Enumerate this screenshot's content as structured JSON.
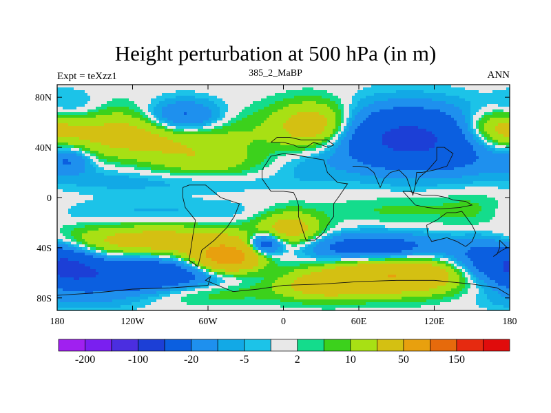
{
  "chart_data": {
    "type": "heatmap",
    "title": "Height perturbation at 500 hPa (in m)",
    "left_label": "Expt = teXzz1",
    "center_label": "385_2_MaBP",
    "right_label": "ANN",
    "x_ticks": [
      "180",
      "120W",
      "60W",
      "0",
      "60E",
      "120E",
      "180"
    ],
    "x_tick_values": [
      -180,
      -120,
      -60,
      0,
      60,
      120,
      180
    ],
    "y_ticks": [
      "80N",
      "40N",
      "0",
      "40S",
      "80S"
    ],
    "y_tick_values": [
      80,
      40,
      0,
      -40,
      -80
    ],
    "xlim": [
      -180,
      180
    ],
    "ylim": [
      -90,
      90
    ],
    "colorbar": {
      "boundaries": [
        -200,
        -150,
        -100,
        -50,
        -20,
        -10,
        -5,
        -2,
        2,
        5,
        10,
        20,
        50,
        100,
        150,
        200
      ],
      "labels": [
        "-200",
        "-100",
        "-20",
        "-5",
        "2",
        "10",
        "50",
        "150"
      ],
      "label_values": [
        -200,
        -100,
        -20,
        -5,
        2,
        10,
        50,
        150
      ],
      "colors": [
        "#a020f0",
        "#7a1ff0",
        "#4b2ee0",
        "#1c3fd6",
        "#0b5fe0",
        "#1e90ee",
        "#12a9e6",
        "#1cc3e8",
        "#e8e8e8",
        "#14dc8c",
        "#3cd11c",
        "#a8e014",
        "#d4c012",
        "#e8a00e",
        "#e66a0c",
        "#e62a10",
        "#e00c0c"
      ]
    },
    "anomaly_centers": [
      {
        "lon": -170,
        "lat": 70,
        "value": -10,
        "sx": 18,
        "sy": 10
      },
      {
        "lon": -110,
        "lat": 50,
        "value": 30,
        "sx": 55,
        "sy": 14
      },
      {
        "lon": -60,
        "lat": 28,
        "value": 12,
        "sx": 28,
        "sy": 8
      },
      {
        "lon": -140,
        "lat": 20,
        "value": -4,
        "sx": 25,
        "sy": 10
      },
      {
        "lon": -80,
        "lat": 63,
        "value": -35,
        "sx": 22,
        "sy": 10
      },
      {
        "lon": -90,
        "lat": 12,
        "value": -6,
        "sx": 60,
        "sy": 6
      },
      {
        "lon": 25,
        "lat": 57,
        "value": 35,
        "sx": 22,
        "sy": 13
      },
      {
        "lon": 100,
        "lat": 47,
        "value": -60,
        "sx": 40,
        "sy": 17
      },
      {
        "lon": 170,
        "lat": 55,
        "value": 25,
        "sx": 20,
        "sy": 10
      },
      {
        "lon": 150,
        "lat": 30,
        "value": -8,
        "sx": 25,
        "sy": 10
      },
      {
        "lon": 20,
        "lat": 25,
        "value": -6,
        "sx": 20,
        "sy": 10
      },
      {
        "lon": -170,
        "lat": 30,
        "value": -20,
        "sx": 12,
        "sy": 8
      },
      {
        "lon": 90,
        "lat": -10,
        "value": 6,
        "sx": 40,
        "sy": 8
      },
      {
        "lon": 150,
        "lat": -10,
        "value": 6,
        "sx": 20,
        "sy": 10
      },
      {
        "lon": 5,
        "lat": -25,
        "value": 28,
        "sx": 18,
        "sy": 10
      },
      {
        "lon": -100,
        "lat": -35,
        "value": 30,
        "sx": 55,
        "sy": 9
      },
      {
        "lon": -45,
        "lat": -48,
        "value": 70,
        "sx": 18,
        "sy": 8
      },
      {
        "lon": -100,
        "lat": -12,
        "value": -6,
        "sx": 70,
        "sy": 7
      },
      {
        "lon": -15,
        "lat": -37,
        "value": -45,
        "sx": 10,
        "sy": 6
      },
      {
        "lon": -120,
        "lat": -62,
        "value": -50,
        "sx": 45,
        "sy": 10
      },
      {
        "lon": -170,
        "lat": -55,
        "value": -30,
        "sx": 15,
        "sy": 10
      },
      {
        "lon": 70,
        "lat": -40,
        "value": -35,
        "sx": 40,
        "sy": 8
      },
      {
        "lon": 165,
        "lat": -48,
        "value": -30,
        "sx": 22,
        "sy": 12
      },
      {
        "lon": 90,
        "lat": -62,
        "value": 50,
        "sx": 38,
        "sy": 10
      },
      {
        "lon": 30,
        "lat": -70,
        "value": 25,
        "sx": 25,
        "sy": 8
      },
      {
        "lon": -70,
        "lat": -75,
        "value": 12,
        "sx": 40,
        "sy": 7
      },
      {
        "lon": -160,
        "lat": -82,
        "value": -8,
        "sx": 30,
        "sy": 6
      }
    ],
    "coastlines": [
      {
        "name": "Europe / Mediterranean",
        "points": [
          [
            -10,
            44
          ],
          [
            0,
            44
          ],
          [
            8,
            42
          ],
          [
            12,
            40
          ],
          [
            18,
            40
          ],
          [
            24,
            44
          ],
          [
            30,
            42
          ],
          [
            36,
            40
          ],
          [
            40,
            42
          ],
          [
            35,
            46
          ],
          [
            25,
            46
          ],
          [
            14,
            46
          ],
          [
            5,
            48
          ],
          [
            -5,
            48
          ],
          [
            -10,
            44
          ]
        ]
      },
      {
        "name": "Africa",
        "points": [
          [
            -17,
            15
          ],
          [
            -10,
            5
          ],
          [
            0,
            5
          ],
          [
            8,
            4
          ],
          [
            10,
            0
          ],
          [
            12,
            -6
          ],
          [
            12,
            -15
          ],
          [
            15,
            -25
          ],
          [
            18,
            -34
          ],
          [
            25,
            -34
          ],
          [
            32,
            -28
          ],
          [
            35,
            -22
          ],
          [
            40,
            -15
          ],
          [
            40,
            -5
          ],
          [
            45,
            2
          ],
          [
            51,
            11
          ],
          [
            43,
            12
          ],
          [
            35,
            20
          ],
          [
            32,
            30
          ],
          [
            20,
            32
          ],
          [
            10,
            34
          ],
          [
            0,
            35
          ],
          [
            -10,
            33
          ],
          [
            -17,
            22
          ],
          [
            -17,
            15
          ]
        ]
      },
      {
        "name": "South America",
        "points": [
          [
            -80,
            8
          ],
          [
            -75,
            10
          ],
          [
            -62,
            10
          ],
          [
            -50,
            0
          ],
          [
            -35,
            -5
          ],
          [
            -39,
            -15
          ],
          [
            -45,
            -24
          ],
          [
            -55,
            -34
          ],
          [
            -65,
            -42
          ],
          [
            -68,
            -55
          ],
          [
            -75,
            -50
          ],
          [
            -72,
            -30
          ],
          [
            -70,
            -18
          ],
          [
            -78,
            -8
          ],
          [
            -80,
            0
          ],
          [
            -80,
            8
          ]
        ]
      },
      {
        "name": "Asia South",
        "points": [
          [
            55,
            25
          ],
          [
            60,
            25
          ],
          [
            67,
            24
          ],
          [
            72,
            20
          ],
          [
            77,
            8
          ],
          [
            80,
            15
          ],
          [
            85,
            20
          ],
          [
            92,
            22
          ],
          [
            98,
            16
          ],
          [
            103,
            2
          ],
          [
            105,
            10
          ],
          [
            108,
            16
          ],
          [
            115,
            22
          ],
          [
            122,
            30
          ],
          [
            122,
            40
          ],
          [
            128,
            40
          ],
          [
            135,
            35
          ],
          [
            130,
            25
          ],
          [
            120,
            22
          ],
          [
            110,
            20
          ],
          [
            106,
            20
          ],
          [
            105,
            10
          ]
        ]
      },
      {
        "name": "Maritime",
        "points": [
          [
            95,
            5
          ],
          [
            105,
            -6
          ],
          [
            115,
            -8
          ],
          [
            125,
            -9
          ],
          [
            140,
            -8
          ],
          [
            150,
            -6
          ],
          [
            145,
            -3
          ],
          [
            135,
            -2
          ],
          [
            130,
            0
          ],
          [
            120,
            2
          ],
          [
            110,
            2
          ],
          [
            100,
            5
          ],
          [
            95,
            5
          ]
        ]
      },
      {
        "name": "Australia",
        "points": [
          [
            114,
            -22
          ],
          [
            122,
            -18
          ],
          [
            130,
            -12
          ],
          [
            137,
            -12
          ],
          [
            142,
            -11
          ],
          [
            145,
            -15
          ],
          [
            150,
            -22
          ],
          [
            153,
            -28
          ],
          [
            150,
            -35
          ],
          [
            145,
            -39
          ],
          [
            138,
            -35
          ],
          [
            130,
            -32
          ],
          [
            118,
            -35
          ],
          [
            115,
            -30
          ],
          [
            114,
            -22
          ]
        ]
      },
      {
        "name": "Antarctica",
        "points": [
          [
            -180,
            -78
          ],
          [
            -150,
            -76
          ],
          [
            -120,
            -73
          ],
          [
            -90,
            -72
          ],
          [
            -60,
            -70
          ],
          [
            -58,
            -63
          ],
          [
            -62,
            -66
          ],
          [
            -40,
            -75
          ],
          [
            -20,
            -73
          ],
          [
            0,
            -70
          ],
          [
            30,
            -69
          ],
          [
            60,
            -67
          ],
          [
            90,
            -66
          ],
          [
            120,
            -66
          ],
          [
            150,
            -69
          ],
          [
            170,
            -72
          ],
          [
            180,
            -78
          ]
        ]
      },
      {
        "name": "New Zealand",
        "points": [
          [
            172,
            -34
          ],
          [
            175,
            -37
          ],
          [
            178,
            -40
          ],
          [
            174,
            -42
          ],
          [
            171,
            -44
          ],
          [
            167,
            -47
          ],
          [
            170,
            -45
          ],
          [
            172,
            -40
          ],
          [
            172,
            -34
          ]
        ]
      }
    ]
  }
}
